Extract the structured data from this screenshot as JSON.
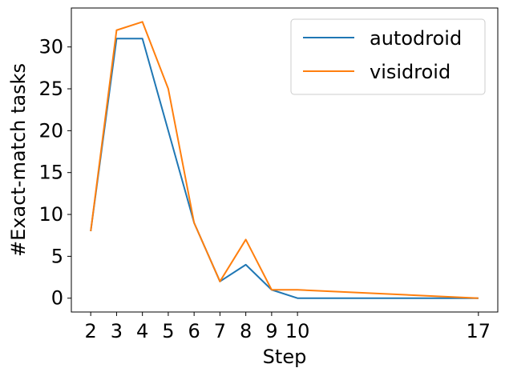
{
  "chart_data": {
    "type": "line",
    "title": "",
    "xlabel": "Step",
    "ylabel": "#Exact-match tasks",
    "x": [
      2,
      3,
      4,
      5,
      6,
      7,
      8,
      9,
      10,
      17
    ],
    "xticks": [
      2,
      3,
      4,
      5,
      6,
      7,
      8,
      9,
      10,
      17
    ],
    "yticks": [
      0,
      5,
      10,
      15,
      20,
      25,
      30
    ],
    "xlim": [
      1.25,
      17.75
    ],
    "ylim": [
      -1.65,
      34.65
    ],
    "grid": false,
    "legend_position": "top-right",
    "series": [
      {
        "name": "autodroid",
        "color": "#1f77b4",
        "values": [
          8,
          31,
          31,
          20,
          9,
          2,
          4,
          1,
          0,
          0
        ]
      },
      {
        "name": "visidroid",
        "color": "#ff7f0e",
        "values": [
          8,
          32,
          33,
          25,
          9,
          2,
          7,
          1,
          1,
          0
        ]
      }
    ]
  }
}
